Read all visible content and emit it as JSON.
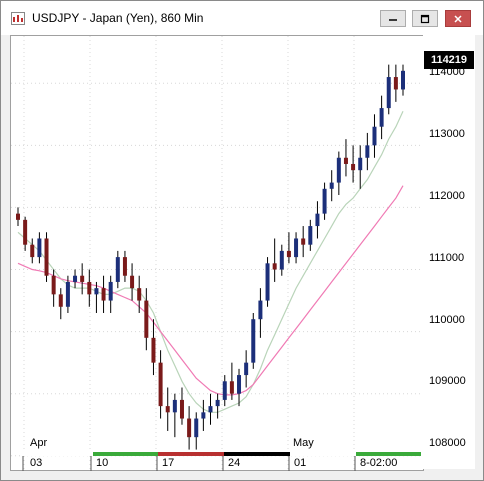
{
  "window": {
    "title": "USDJPY - Japan (Yen), 860 Min",
    "minimize_glyph": "—",
    "maximize_glyph": "□",
    "close_glyph": "✕"
  },
  "price_axis": {
    "labels": [
      "114000",
      "113000",
      "112000",
      "111000",
      "110000",
      "109000",
      "108000"
    ],
    "last_price": "114219"
  },
  "time_axis": {
    "months": [
      "Apr",
      "May"
    ],
    "dates": [
      "03",
      "10",
      "17",
      "24",
      "01",
      "8-02:00"
    ]
  },
  "colors": {
    "up_candle": "#1c2f7a",
    "down_candle": "#7a1a1a",
    "ma_fast": "#b9d4b9",
    "ma_slow": "#f07ab4",
    "strip_green": "#3aaa3a",
    "strip_red": "#b83030",
    "strip_black": "#000000"
  },
  "chart_data": {
    "type": "candlestick",
    "symbol": "USDJPY",
    "ylim": [
      107900,
      114600
    ],
    "yticks": [
      108000,
      109000,
      110000,
      111000,
      112000,
      113000,
      114000
    ],
    "candles": [
      [
        111900,
        112000,
        111700,
        111800
      ],
      [
        111800,
        111850,
        111300,
        111400
      ],
      [
        111400,
        111500,
        111100,
        111200
      ],
      [
        111200,
        111600,
        111100,
        111500
      ],
      [
        111500,
        111600,
        110800,
        110900
      ],
      [
        110900,
        111000,
        110400,
        110600
      ],
      [
        110600,
        110700,
        110200,
        110400
      ],
      [
        110400,
        110900,
        110300,
        110800
      ],
      [
        110800,
        111000,
        110700,
        110900
      ],
      [
        110900,
        111100,
        110600,
        110800
      ],
      [
        110800,
        111000,
        110400,
        110600
      ],
      [
        110600,
        110800,
        110300,
        110700
      ],
      [
        110700,
        110900,
        110300,
        110500
      ],
      [
        110500,
        110900,
        110300,
        110800
      ],
      [
        110800,
        111300,
        110700,
        111200
      ],
      [
        111200,
        111300,
        110800,
        110900
      ],
      [
        110900,
        111100,
        110500,
        110700
      ],
      [
        110700,
        110900,
        110300,
        110500
      ],
      [
        110500,
        110700,
        109700,
        109900
      ],
      [
        109900,
        110200,
        109300,
        109500
      ],
      [
        109500,
        109700,
        108600,
        108800
      ],
      [
        108800,
        109100,
        108400,
        108700
      ],
      [
        108700,
        109000,
        108300,
        108900
      ],
      [
        108900,
        109100,
        108500,
        108600
      ],
      [
        108600,
        108800,
        108100,
        108300
      ],
      [
        108300,
        108700,
        108100,
        108600
      ],
      [
        108600,
        108900,
        108400,
        108700
      ],
      [
        108700,
        109000,
        108500,
        108800
      ],
      [
        108800,
        109000,
        108600,
        108900
      ],
      [
        108900,
        109300,
        108800,
        109200
      ],
      [
        109200,
        109500,
        108900,
        109000
      ],
      [
        109000,
        109400,
        108800,
        109300
      ],
      [
        109300,
        109700,
        109100,
        109500
      ],
      [
        109500,
        110300,
        109400,
        110200
      ],
      [
        110200,
        110700,
        109900,
        110500
      ],
      [
        110500,
        111200,
        110400,
        111100
      ],
      [
        111100,
        111500,
        110800,
        111000
      ],
      [
        111000,
        111400,
        110900,
        111300
      ],
      [
        111300,
        111600,
        111100,
        111200
      ],
      [
        111200,
        111600,
        111100,
        111500
      ],
      [
        111500,
        111700,
        111200,
        111400
      ],
      [
        111400,
        111800,
        111300,
        111700
      ],
      [
        111700,
        112100,
        111500,
        111900
      ],
      [
        111900,
        112400,
        111800,
        112300
      ],
      [
        112300,
        112600,
        112100,
        112400
      ],
      [
        112400,
        112900,
        112200,
        112800
      ],
      [
        112800,
        113100,
        112500,
        112700
      ],
      [
        112700,
        113000,
        112400,
        112600
      ],
      [
        112600,
        113000,
        112300,
        112800
      ],
      [
        112800,
        113200,
        112600,
        113000
      ],
      [
        113000,
        113500,
        112800,
        113300
      ],
      [
        113300,
        113800,
        113100,
        113600
      ],
      [
        113600,
        114300,
        113500,
        114100
      ],
      [
        114100,
        114300,
        113700,
        113900
      ],
      [
        113900,
        114300,
        113800,
        114200
      ]
    ],
    "series": [
      {
        "name": "",
        "color": "#b9d4b9",
        "values": [
          111600,
          111500,
          111400,
          111300,
          111150,
          111000,
          110850,
          110750,
          110700,
          110700,
          110700,
          110650,
          110600,
          110600,
          110650,
          110700,
          110700,
          110650,
          110500,
          110300,
          110000,
          109700,
          109450,
          109200,
          109000,
          108850,
          108750,
          108700,
          108700,
          108750,
          108800,
          108850,
          108950,
          109150,
          109400,
          109700,
          109950,
          110200,
          110450,
          110700,
          110900,
          111100,
          111300,
          111500,
          111700,
          111900,
          112050,
          112150,
          112300,
          112450,
          112650,
          112850,
          113100,
          113300,
          113550
        ]
      },
      {
        "name": "",
        "color": "#f07ab4",
        "values": [
          111100,
          111050,
          111000,
          110980,
          110950,
          110900,
          110850,
          110820,
          110800,
          110780,
          110760,
          110740,
          110700,
          110650,
          110600,
          110550,
          110500,
          110400,
          110300,
          110150,
          110000,
          109850,
          109700,
          109550,
          109400,
          109250,
          109150,
          109050,
          109000,
          108980,
          108980,
          109000,
          109050,
          109150,
          109300,
          109450,
          109600,
          109750,
          109900,
          110050,
          110200,
          110350,
          110500,
          110650,
          110800,
          110950,
          111100,
          111250,
          111400,
          111550,
          111700,
          111850,
          112000,
          112150,
          112350
        ]
      }
    ]
  }
}
